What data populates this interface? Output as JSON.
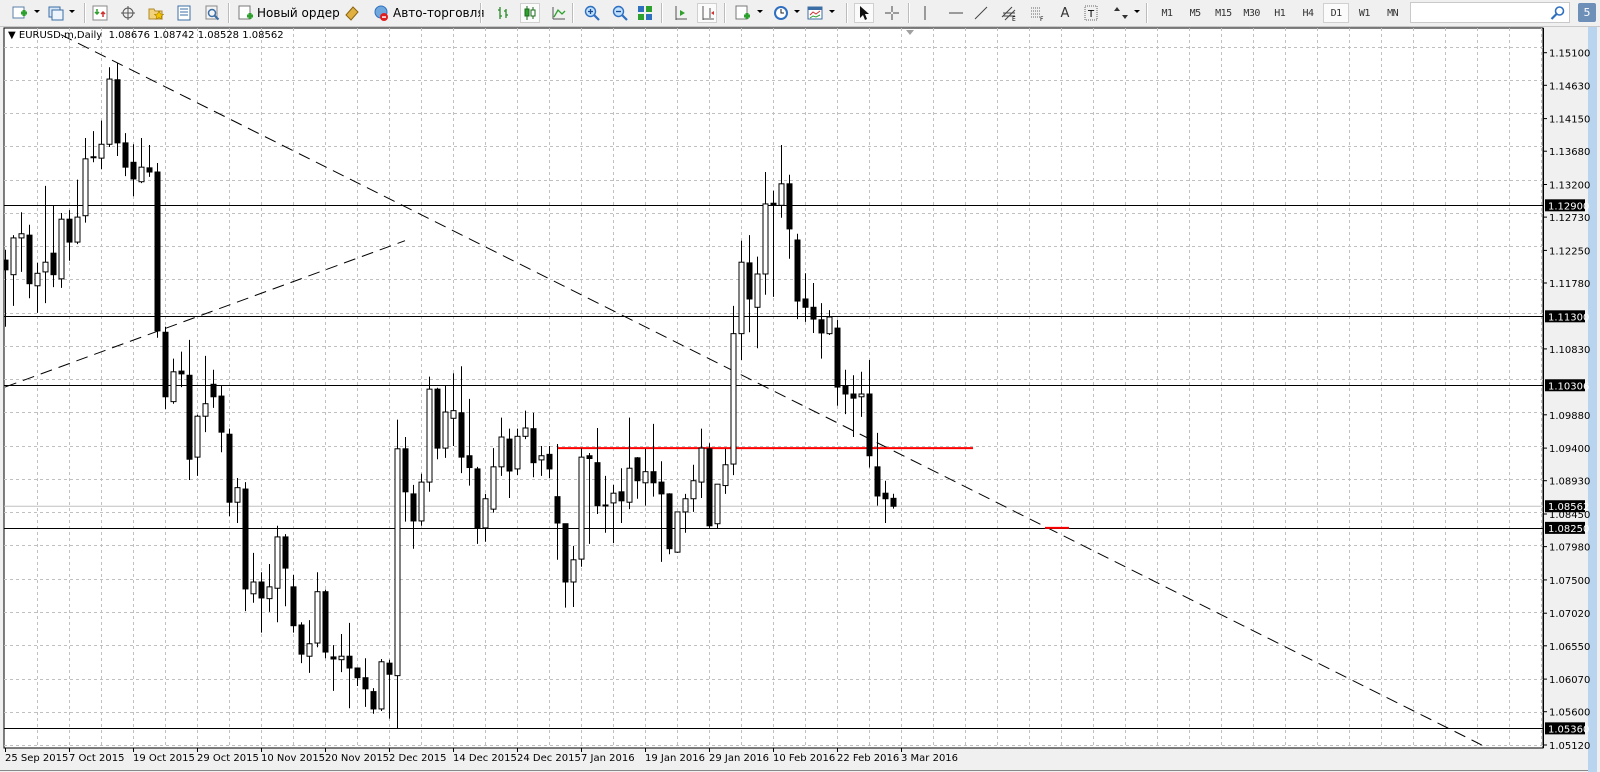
{
  "toolbar": {
    "new_order_label": "Новый ордер",
    "auto_trading_label": "Авто-торговля",
    "timeframes": [
      "M1",
      "M5",
      "M15",
      "M30",
      "H1",
      "H4",
      "D1",
      "W1",
      "MN"
    ],
    "active_timeframe": "D1",
    "search_value": "",
    "notification_count": "5",
    "colors": {
      "accent_green": "#2ea02e",
      "accent_blue": "#2f6fc0"
    }
  },
  "chart": {
    "symbol_label": "EURUSD.m,Daily",
    "ohlc": [
      "1.08676",
      "1.08742",
      "1.08528",
      "1.08562"
    ]
  },
  "chart_data": {
    "type": "candlestick",
    "title": "EURUSD.m,Daily",
    "price_ticks": [
      "1.15100",
      "1.14630",
      "1.14150",
      "1.13680",
      "1.13200",
      "1.12730",
      "1.12250",
      "1.11780",
      "1.10830",
      "1.09880",
      "1.09400",
      "1.08930",
      "1.08450",
      "1.07980",
      "1.07500",
      "1.07020",
      "1.06550",
      "1.06070",
      "1.05600",
      "1.05120"
    ],
    "ylim": [
      1.0512,
      1.1542
    ],
    "grid": true,
    "date_labels": [
      "25 Sep 2015",
      "7 Oct 2015",
      "19 Oct 2015",
      "29 Oct 2015",
      "10 Nov 2015",
      "20 Nov 2015",
      "2 Dec 2015",
      "14 Dec 2015",
      "24 Dec 2015",
      "7 Jan 2016",
      "19 Jan 2016",
      "29 Jan 2016",
      "10 Feb 2016",
      "22 Feb 2016",
      "3 Mar 2016"
    ],
    "bars_per_date_label": 8,
    "candles_ohlc": [
      [
        1.1211,
        1.1226,
        1.1115,
        1.1197
      ],
      [
        1.119,
        1.1247,
        1.1145,
        1.1243
      ],
      [
        1.1243,
        1.128,
        1.1194,
        1.1249
      ],
      [
        1.1247,
        1.1262,
        1.1156,
        1.1177
      ],
      [
        1.1174,
        1.1207,
        1.1135,
        1.1192
      ],
      [
        1.1194,
        1.1318,
        1.1149,
        1.1208
      ],
      [
        1.1221,
        1.1289,
        1.1172,
        1.119
      ],
      [
        1.1184,
        1.1279,
        1.1171,
        1.127
      ],
      [
        1.127,
        1.1283,
        1.121,
        1.1237
      ],
      [
        1.1237,
        1.1327,
        1.1234,
        1.1273
      ],
      [
        1.1275,
        1.1387,
        1.1265,
        1.1357
      ],
      [
        1.136,
        1.1397,
        1.1352,
        1.1359
      ],
      [
        1.1358,
        1.1412,
        1.1342,
        1.1378
      ],
      [
        1.1378,
        1.1489,
        1.1374,
        1.1472
      ],
      [
        1.1471,
        1.1495,
        1.1361,
        1.138
      ],
      [
        1.138,
        1.1394,
        1.1332,
        1.1345
      ],
      [
        1.1352,
        1.1378,
        1.1303,
        1.1328
      ],
      [
        1.1324,
        1.1387,
        1.1322,
        1.1345
      ],
      [
        1.1344,
        1.1377,
        1.1331,
        1.1338
      ],
      [
        1.1338,
        1.1351,
        1.1099,
        1.1109
      ],
      [
        1.1107,
        1.1115,
        1.0996,
        1.1014
      ],
      [
        1.1007,
        1.1069,
        1.1004,
        1.105
      ],
      [
        1.1051,
        1.1079,
        1.1028,
        1.1047
      ],
      [
        1.1045,
        1.1096,
        1.0894,
        1.0924
      ],
      [
        1.0927,
        1.0988,
        1.09,
        1.0986
      ],
      [
        1.0986,
        1.1073,
        1.0963,
        1.1004
      ],
      [
        1.1032,
        1.1053,
        1.0998,
        1.1014
      ],
      [
        1.1015,
        1.103,
        1.0934,
        1.0963
      ],
      [
        1.096,
        1.0968,
        1.0842,
        1.0862
      ],
      [
        1.0862,
        1.0897,
        1.0832,
        1.0883
      ],
      [
        1.0881,
        1.0891,
        1.0705,
        1.0737
      ],
      [
        1.073,
        1.0789,
        1.0717,
        1.0747
      ],
      [
        1.0747,
        1.0761,
        1.0674,
        1.0724
      ],
      [
        1.0723,
        1.0773,
        1.0704,
        1.074
      ],
      [
        1.0738,
        1.0828,
        1.0689,
        1.0812
      ],
      [
        1.0812,
        1.0816,
        1.0712,
        1.0767
      ],
      [
        1.074,
        1.0757,
        1.0674,
        1.0684
      ],
      [
        1.0685,
        1.0689,
        1.063,
        1.0643
      ],
      [
        1.064,
        1.0692,
        1.0616,
        1.0658
      ],
      [
        1.0659,
        1.0761,
        1.0653,
        1.0733
      ],
      [
        1.0733,
        1.0736,
        1.0637,
        1.0646
      ],
      [
        1.0639,
        1.0656,
        1.059,
        1.0636
      ],
      [
        1.0635,
        1.0672,
        1.0617,
        1.064
      ],
      [
        1.064,
        1.0688,
        1.0565,
        1.0623
      ],
      [
        1.0623,
        1.0624,
        1.0597,
        1.0609
      ],
      [
        1.0609,
        1.0637,
        1.0567,
        1.0593
      ],
      [
        1.0589,
        1.0594,
        1.0557,
        1.0564
      ],
      [
        1.0564,
        1.0636,
        1.0561,
        1.0632
      ],
      [
        1.063,
        1.0635,
        1.055,
        1.0614
      ],
      [
        1.0612,
        1.0981,
        1.0536,
        1.0939
      ],
      [
        1.0939,
        1.0956,
        1.0834,
        1.0877
      ],
      [
        1.0874,
        1.0887,
        1.0795,
        1.0835
      ],
      [
        1.0835,
        1.0903,
        1.0828,
        1.0891
      ],
      [
        1.0891,
        1.1043,
        1.0877,
        1.1025
      ],
      [
        1.1025,
        1.1027,
        1.0924,
        1.094
      ],
      [
        1.094,
        1.103,
        1.0926,
        1.0992
      ],
      [
        1.0983,
        1.1048,
        1.0943,
        1.0994
      ],
      [
        1.0991,
        1.1058,
        1.0904,
        1.0927
      ],
      [
        1.0929,
        1.1011,
        1.0886,
        1.0912
      ],
      [
        1.091,
        1.0913,
        1.0802,
        1.0825
      ],
      [
        1.0825,
        1.0874,
        1.0805,
        1.0867
      ],
      [
        1.0852,
        1.094,
        1.0847,
        1.0913
      ],
      [
        1.0913,
        1.0984,
        1.09,
        1.0956
      ],
      [
        1.0953,
        1.0968,
        1.0868,
        1.0907
      ],
      [
        1.091,
        1.0968,
        1.0901,
        1.0957
      ],
      [
        1.0957,
        1.0994,
        1.0953,
        1.0969
      ],
      [
        1.0968,
        1.0991,
        1.0898,
        1.0919
      ],
      [
        1.0923,
        1.0943,
        1.09,
        1.0929
      ],
      [
        1.0931,
        1.0943,
        1.0897,
        1.091
      ],
      [
        1.087,
        1.0946,
        1.0779,
        1.0832
      ],
      [
        1.0831,
        1.0831,
        1.071,
        1.0747
      ],
      [
        1.0747,
        1.0799,
        1.0711,
        1.0779
      ],
      [
        1.078,
        1.094,
        1.0769,
        1.0927
      ],
      [
        1.0929,
        1.0933,
        1.0802,
        1.0925
      ],
      [
        1.0919,
        1.0969,
        1.0845,
        1.0857
      ],
      [
        1.0858,
        1.09,
        1.0818,
        1.0857
      ],
      [
        1.0861,
        1.0887,
        1.0803,
        1.0875
      ],
      [
        1.0877,
        1.0911,
        1.0832,
        1.0864
      ],
      [
        1.0862,
        1.0984,
        1.0852,
        1.0911
      ],
      [
        1.0926,
        1.0927,
        1.0867,
        1.0893
      ],
      [
        1.089,
        1.0939,
        1.0857,
        1.0906
      ],
      [
        1.0906,
        1.0975,
        1.087,
        1.089
      ],
      [
        1.0891,
        1.0921,
        1.0776,
        1.0874
      ],
      [
        1.0874,
        1.0875,
        1.0787,
        1.0795
      ],
      [
        1.079,
        1.0848,
        1.0789,
        1.0848
      ],
      [
        1.0848,
        1.0874,
        1.0818,
        1.0867
      ],
      [
        1.0867,
        1.0916,
        1.0848,
        1.0893
      ],
      [
        1.0891,
        1.0968,
        1.0868,
        1.094
      ],
      [
        1.0939,
        1.0947,
        1.0825,
        1.0828
      ],
      [
        1.0831,
        1.0888,
        1.0824,
        1.0888
      ],
      [
        1.0886,
        1.0939,
        1.0874,
        1.0916
      ],
      [
        1.0917,
        1.1145,
        1.0901,
        1.1105
      ],
      [
        1.1105,
        1.1239,
        1.1067,
        1.1208
      ],
      [
        1.1207,
        1.1247,
        1.1107,
        1.1155
      ],
      [
        1.1143,
        1.1216,
        1.1084,
        1.1191
      ],
      [
        1.1191,
        1.1338,
        1.1161,
        1.1292
      ],
      [
        1.1293,
        1.1311,
        1.1158,
        1.129
      ],
      [
        1.129,
        1.1377,
        1.1272,
        1.1321
      ],
      [
        1.1321,
        1.1334,
        1.1213,
        1.1256
      ],
      [
        1.124,
        1.1249,
        1.1126,
        1.1152
      ],
      [
        1.1155,
        1.1192,
        1.1122,
        1.1143
      ],
      [
        1.1143,
        1.1178,
        1.1106,
        1.1126
      ],
      [
        1.1125,
        1.1149,
        1.1069,
        1.1106
      ],
      [
        1.1105,
        1.1139,
        1.1103,
        1.1129
      ],
      [
        1.1113,
        1.1125,
        1.1001,
        1.1028
      ],
      [
        1.103,
        1.1053,
        1.0989,
        1.1018
      ],
      [
        1.1018,
        1.1045,
        1.0956,
        1.1012
      ],
      [
        1.1014,
        1.105,
        1.0985,
        1.1018
      ],
      [
        1.1018,
        1.1067,
        1.0912,
        1.0929
      ],
      [
        1.0913,
        1.0962,
        1.0857,
        1.0871
      ],
      [
        1.0875,
        1.0893,
        1.0832,
        1.0867
      ],
      [
        1.08676,
        1.08742,
        1.08528,
        1.08562
      ]
    ],
    "horizontal_lines": [
      {
        "price": 1.129,
        "label": "1.12900",
        "color": "#000000"
      },
      {
        "price": 1.113,
        "label": "1.11300",
        "color": "#000000"
      },
      {
        "price": 1.10306,
        "label": "1.10306",
        "color": "#000000"
      },
      {
        "price": 1.0825,
        "label": "1.08250",
        "color": "#000000"
      },
      {
        "price": 1.0536,
        "label": "1.05360",
        "color": "#000000"
      }
    ],
    "bid_line": {
      "price": 1.08562,
      "label": "1.08562",
      "color": "#c0c0c0"
    },
    "red_segments": [
      {
        "from_bar": 69,
        "to_bar": 121,
        "price": 1.094,
        "color": "#ff0000"
      },
      {
        "from_bar": 130,
        "to_bar": 133,
        "price": 1.0825,
        "color": "#ff0000"
      }
    ],
    "trendlines": [
      {
        "from_bar": 7,
        "from_price": 1.1536,
        "to_bar": 184.6,
        "to_price": 1.0512,
        "style": "dashed"
      },
      {
        "from_bar": 0,
        "from_price": 1.1028,
        "to_bar": 50,
        "to_price": 1.1239,
        "style": "dashed"
      }
    ]
  }
}
